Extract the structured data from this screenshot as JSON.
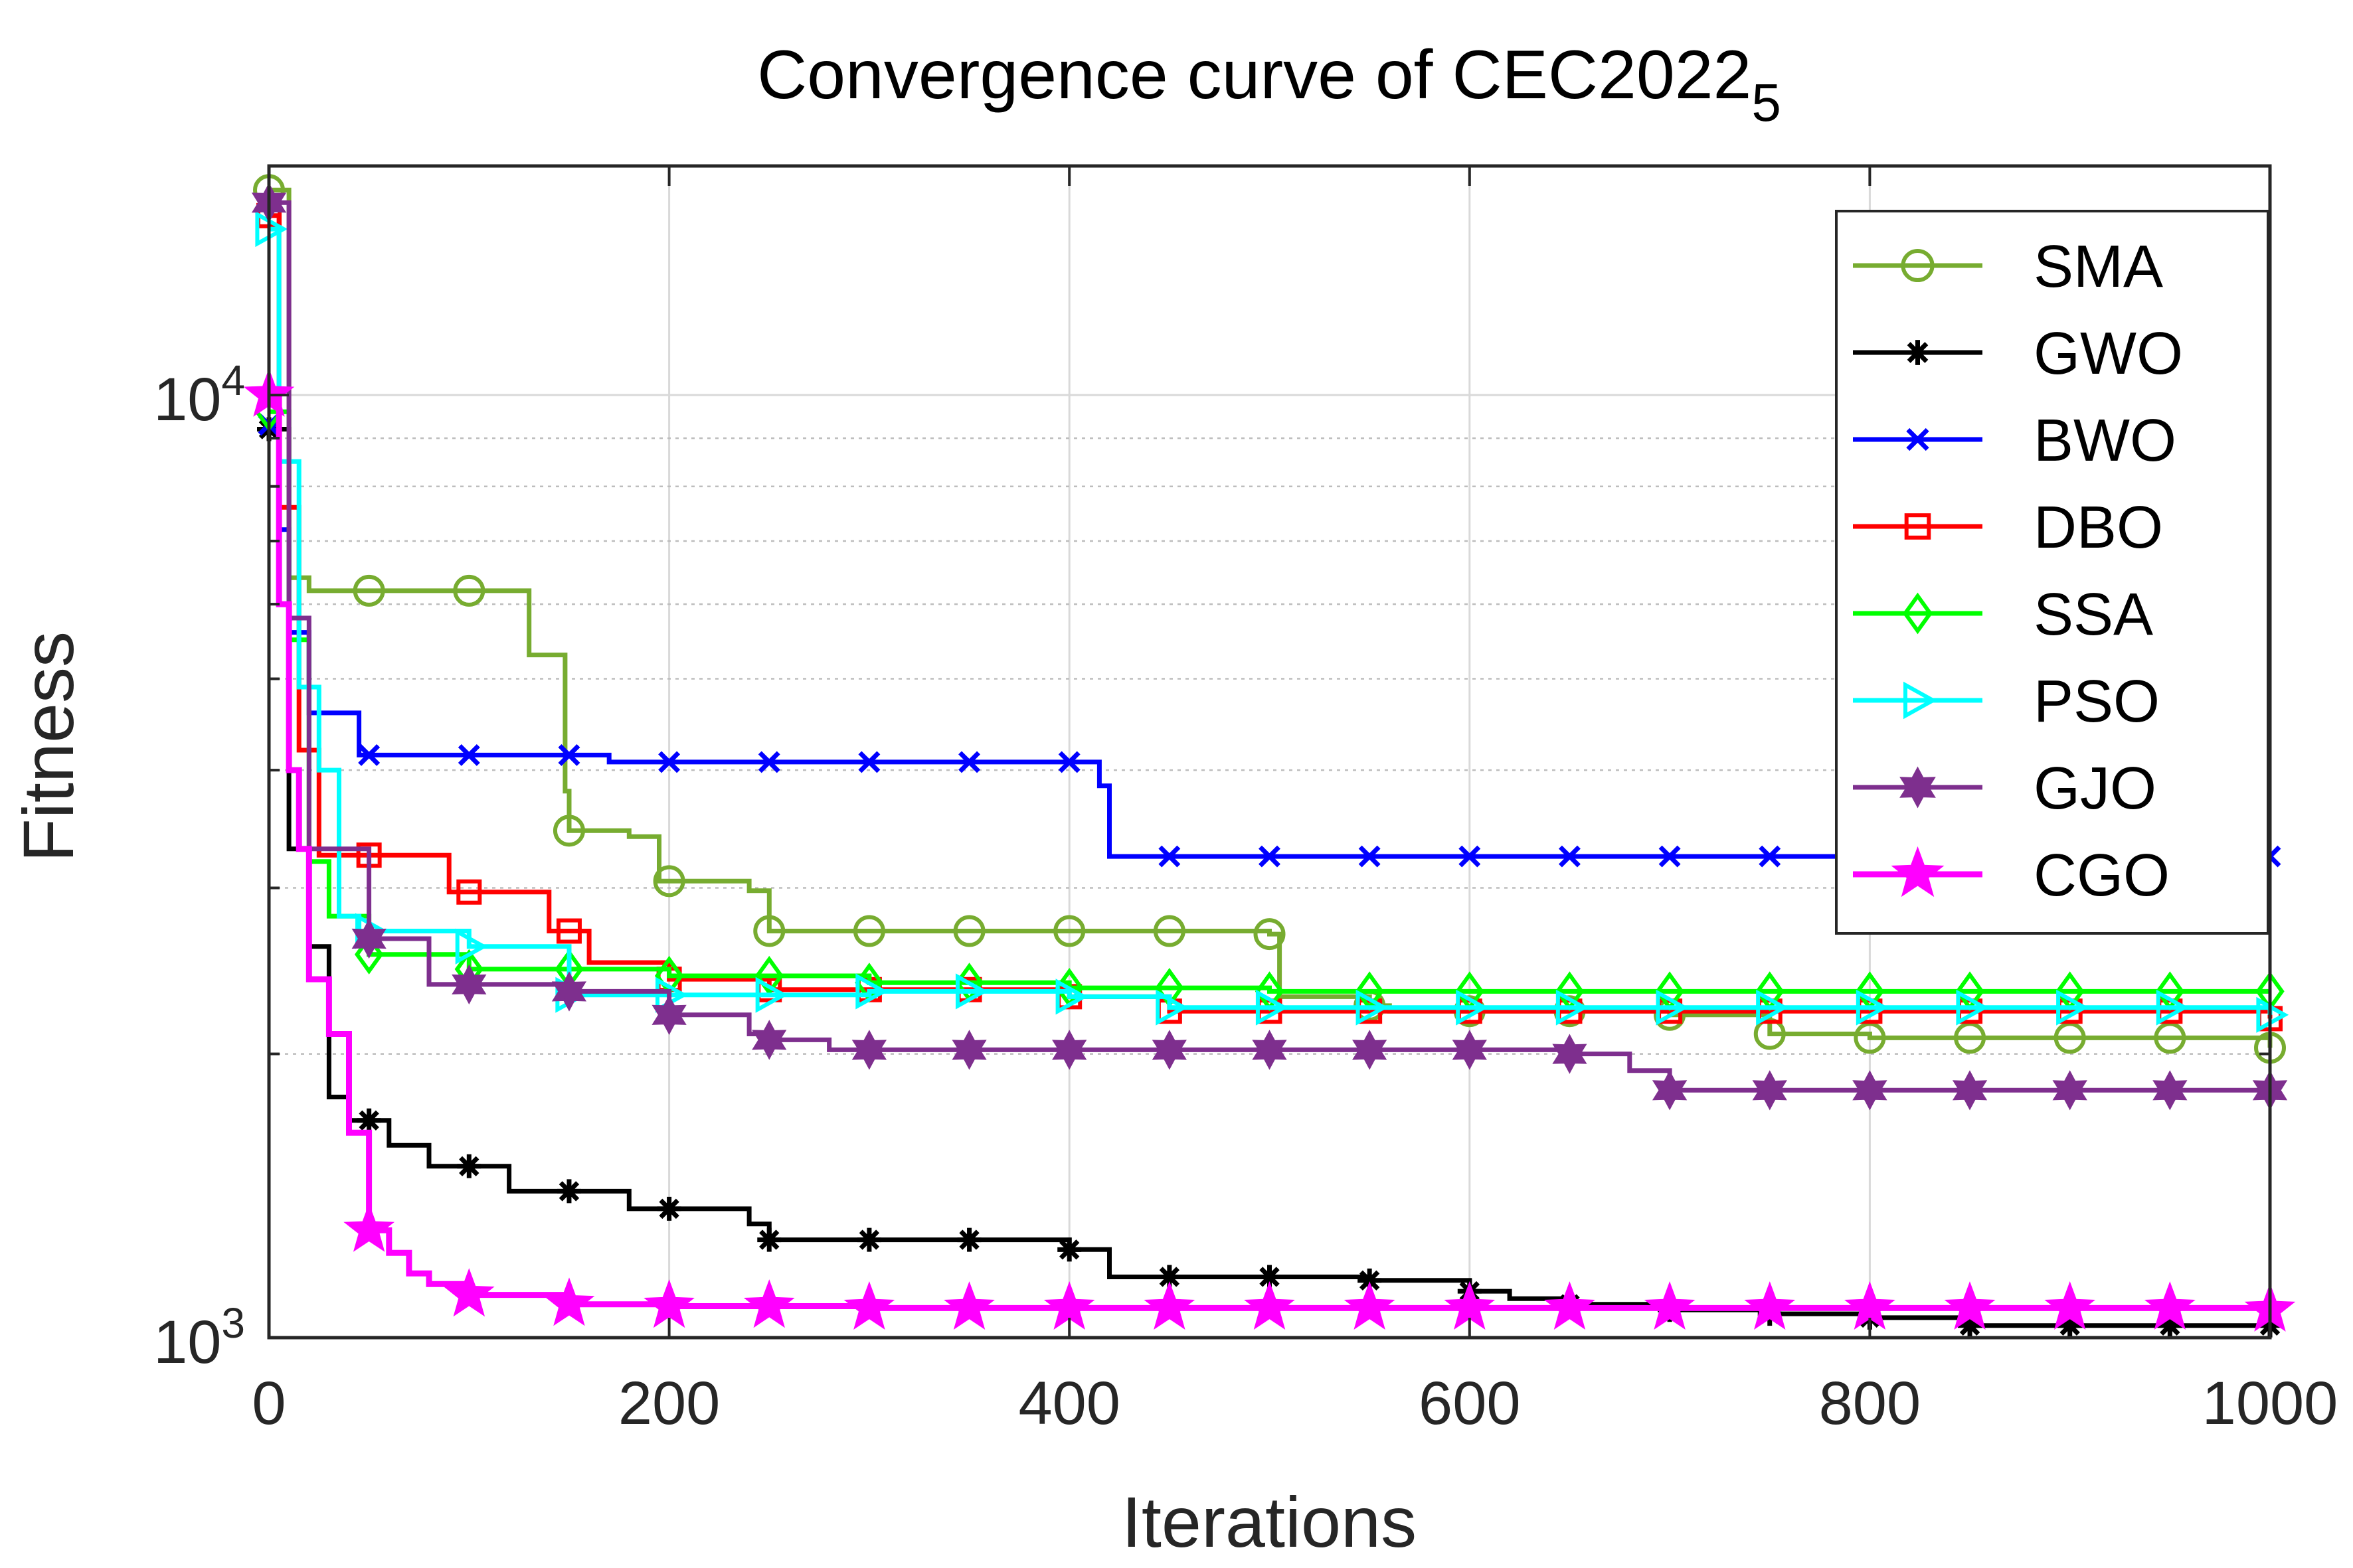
{
  "chart_data": {
    "type": "line",
    "title_main": "Convergence curve of CEC2022",
    "title_sub": "5",
    "xlabel": "Iterations",
    "ylabel": "Fitness",
    "xlim": [
      0,
      1000
    ],
    "ylim": [
      1000,
      17500
    ],
    "yscale": "log",
    "grid": true,
    "legend_position": "top-right",
    "x_ticks": [
      "0",
      "200",
      "400",
      "600",
      "800",
      "1000"
    ],
    "y_ticks": [
      {
        "base": "10",
        "exp": "3"
      },
      {
        "base": "10",
        "exp": "4"
      }
    ],
    "marker_interval": 50,
    "series": [
      {
        "name": "SMA",
        "color": "#77AC30",
        "marker": "circle",
        "x": [
          0,
          10,
          20,
          100,
          130,
          148,
          150,
          180,
          195,
          240,
          250,
          500,
          505,
          550,
          560,
          700,
          750,
          800,
          1000
        ],
        "y": [
          16500,
          6400,
          6200,
          6200,
          5300,
          3800,
          3450,
          3400,
          3050,
          2980,
          2700,
          2680,
          2300,
          2250,
          2220,
          2200,
          2100,
          2080,
          2030
        ]
      },
      {
        "name": "GWO",
        "color": "#000000",
        "marker": "asterisk",
        "x": [
          0,
          10,
          20,
          30,
          40,
          60,
          80,
          120,
          180,
          240,
          250,
          400,
          420,
          550,
          600,
          620,
          650,
          700,
          750,
          800,
          850,
          1000
        ],
        "y": [
          9200,
          3300,
          2600,
          1800,
          1700,
          1600,
          1520,
          1430,
          1370,
          1320,
          1270,
          1240,
          1160,
          1150,
          1120,
          1100,
          1085,
          1070,
          1060,
          1050,
          1030,
          1030
        ]
      },
      {
        "name": "BWO",
        "color": "#0000FF",
        "marker": "x",
        "x": [
          0,
          5,
          10,
          20,
          45,
          150,
          170,
          400,
          415,
          420,
          1000
        ],
        "y": [
          9300,
          7200,
          5600,
          4600,
          4150,
          4150,
          4080,
          4080,
          3850,
          3240,
          3240
        ]
      },
      {
        "name": "DBO",
        "color": "#FF0000",
        "marker": "square",
        "x": [
          0,
          5,
          15,
          25,
          80,
          90,
          140,
          160,
          200,
          250,
          400,
          450,
          1000
        ],
        "y": [
          15500,
          7600,
          4200,
          3250,
          3250,
          2970,
          2700,
          2500,
          2400,
          2340,
          2300,
          2220,
          2180
        ]
      },
      {
        "name": "SSA",
        "color": "#00FF00",
        "marker": "diamond",
        "x": [
          0,
          10,
          20,
          30,
          50,
          100,
          200,
          300,
          400,
          500,
          1000
        ],
        "y": [
          9600,
          5500,
          3200,
          2800,
          2550,
          2460,
          2420,
          2380,
          2350,
          2330,
          2330
        ]
      },
      {
        "name": "PSO",
        "color": "#00FFFF",
        "marker": "triangle-right",
        "x": [
          0,
          5,
          15,
          25,
          35,
          45,
          100,
          145,
          150,
          300,
          400,
          450,
          1000
        ],
        "y": [
          15000,
          8500,
          4900,
          4000,
          2800,
          2700,
          2600,
          2600,
          2310,
          2330,
          2300,
          2240,
          2200
        ]
      },
      {
        "name": "GJO",
        "color": "#7E2F8E",
        "marker": "hexagram",
        "x": [
          0,
          10,
          20,
          50,
          80,
          150,
          200,
          240,
          250,
          280,
          650,
          680,
          700,
          1000
        ],
        "y": [
          16000,
          5800,
          3300,
          2650,
          2370,
          2330,
          2200,
          2100,
          2070,
          2020,
          2000,
          1920,
          1830,
          1830
        ]
      },
      {
        "name": "CGO",
        "color": "#FF00FF",
        "marker": "pentagram",
        "x": [
          0,
          5,
          10,
          15,
          20,
          30,
          40,
          50,
          60,
          70,
          80,
          100,
          150,
          200,
          300,
          400,
          500,
          1000
        ],
        "y": [
          10000,
          6000,
          4000,
          3300,
          2400,
          2100,
          1650,
          1300,
          1230,
          1170,
          1140,
          1110,
          1085,
          1080,
          1075,
          1075,
          1075,
          1070
        ]
      }
    ]
  }
}
